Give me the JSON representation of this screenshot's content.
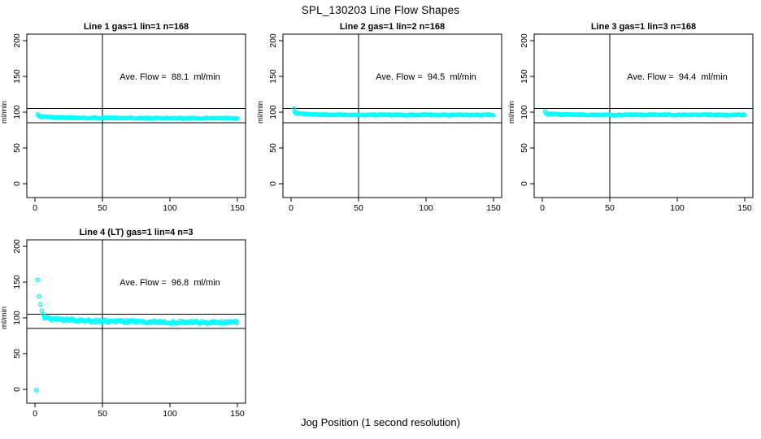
{
  "page": {
    "title": "SPL_130203  Line Flow Shapes",
    "xlabel": "Jog Position (1 second resolution)",
    "background_color": "#FFFFFF",
    "marker_color": "#00FFFF",
    "line_color": "#000000"
  },
  "chart_data": [
    {
      "type": "scatter",
      "title": "Line 1 gas=1 lin=1 n=168",
      "annotation": "Ave. Flow =  88.1  ml/min",
      "ave_flow_ml_min": 88.1,
      "gas": 1,
      "lin": 1,
      "n": 168,
      "ylabel": "ml/min",
      "xlim": [
        0,
        150
      ],
      "ylim": [
        0,
        200
      ],
      "x_ticks": [
        0,
        50,
        100,
        150
      ],
      "y_ticks": [
        0,
        50,
        100,
        150,
        200
      ],
      "ref_lines": {
        "horizontal": [
          105,
          85
        ],
        "vertical": [
          50
        ]
      },
      "marker_color": "#00FFFF",
      "annotation_anchor": {
        "x": 100,
        "y": 150
      },
      "points": [
        [
          2,
          97
        ],
        [
          3,
          95
        ]
      ],
      "band": {
        "x_start": 3,
        "x_end": 150,
        "y_start": 94,
        "y_end": 91.5,
        "tau": 22,
        "jitter": 0.7,
        "step": 1
      }
    },
    {
      "type": "scatter",
      "title": "Line 2 gas=1 lin=2 n=168",
      "annotation": "Ave. Flow =  94.5  ml/min",
      "ave_flow_ml_min": 94.5,
      "gas": 1,
      "lin": 2,
      "n": 168,
      "ylabel": "ml/min",
      "xlim": [
        0,
        150
      ],
      "ylim": [
        0,
        200
      ],
      "x_ticks": [
        0,
        50,
        100,
        150
      ],
      "y_ticks": [
        0,
        50,
        100,
        150,
        200
      ],
      "ref_lines": {
        "horizontal": [
          105,
          85
        ],
        "vertical": [
          50
        ]
      },
      "marker_color": "#00FFFF",
      "annotation_anchor": {
        "x": 100,
        "y": 150
      },
      "points": [
        [
          2,
          105
        ],
        [
          2.6,
          101
        ],
        [
          3.4,
          99
        ]
      ],
      "band": {
        "x_start": 4,
        "x_end": 150,
        "y_start": 98.5,
        "y_end": 96.2,
        "tau": 12,
        "jitter": 0.7,
        "step": 1
      }
    },
    {
      "type": "scatter",
      "title": "Line 3 gas=1 lin=3 n=168",
      "annotation": "Ave. Flow =  94.4  ml/min",
      "ave_flow_ml_min": 94.4,
      "gas": 1,
      "lin": 3,
      "n": 168,
      "ylabel": "ml/min",
      "xlim": [
        0,
        150
      ],
      "ylim": [
        0,
        200
      ],
      "x_ticks": [
        0,
        50,
        100,
        150
      ],
      "y_ticks": [
        0,
        50,
        100,
        150,
        200
      ],
      "ref_lines": {
        "horizontal": [
          105,
          85
        ],
        "vertical": [
          50
        ]
      },
      "marker_color": "#00FFFF",
      "annotation_anchor": {
        "x": 100,
        "y": 150
      },
      "points": [
        [
          2,
          101
        ],
        [
          3,
          98.5
        ]
      ],
      "band": {
        "x_start": 3,
        "x_end": 150,
        "y_start": 97.8,
        "y_end": 96.2,
        "tau": 10,
        "jitter": 0.7,
        "step": 1
      }
    },
    {
      "type": "scatter",
      "title": "Line 4 (LT) gas=1 lin=4 n=3",
      "annotation": "Ave. Flow =  96.8  ml/min",
      "ave_flow_ml_min": 96.8,
      "gas": 1,
      "lin": 4,
      "n": 3,
      "ylabel": "ml/min",
      "xlim": [
        0,
        150
      ],
      "ylim": [
        0,
        200
      ],
      "x_ticks": [
        0,
        50,
        100,
        150
      ],
      "y_ticks": [
        0,
        50,
        100,
        150,
        200
      ],
      "ref_lines": {
        "horizontal": [
          105,
          85
        ],
        "vertical": [
          50
        ]
      },
      "marker_color": "#00FFFF",
      "annotation_anchor": {
        "x": 100,
        "y": 150
      },
      "points": [
        [
          1,
          -1
        ],
        [
          2,
          153
        ],
        [
          3,
          130
        ],
        [
          4,
          119
        ],
        [
          5,
          110
        ],
        [
          6,
          105
        ],
        [
          7,
          102
        ]
      ],
      "band": {
        "x_start": 7,
        "x_end": 150,
        "y_start": 99.5,
        "y_end": 93.5,
        "tau": 38,
        "jitter": 2.0,
        "step": 0.8
      }
    }
  ]
}
